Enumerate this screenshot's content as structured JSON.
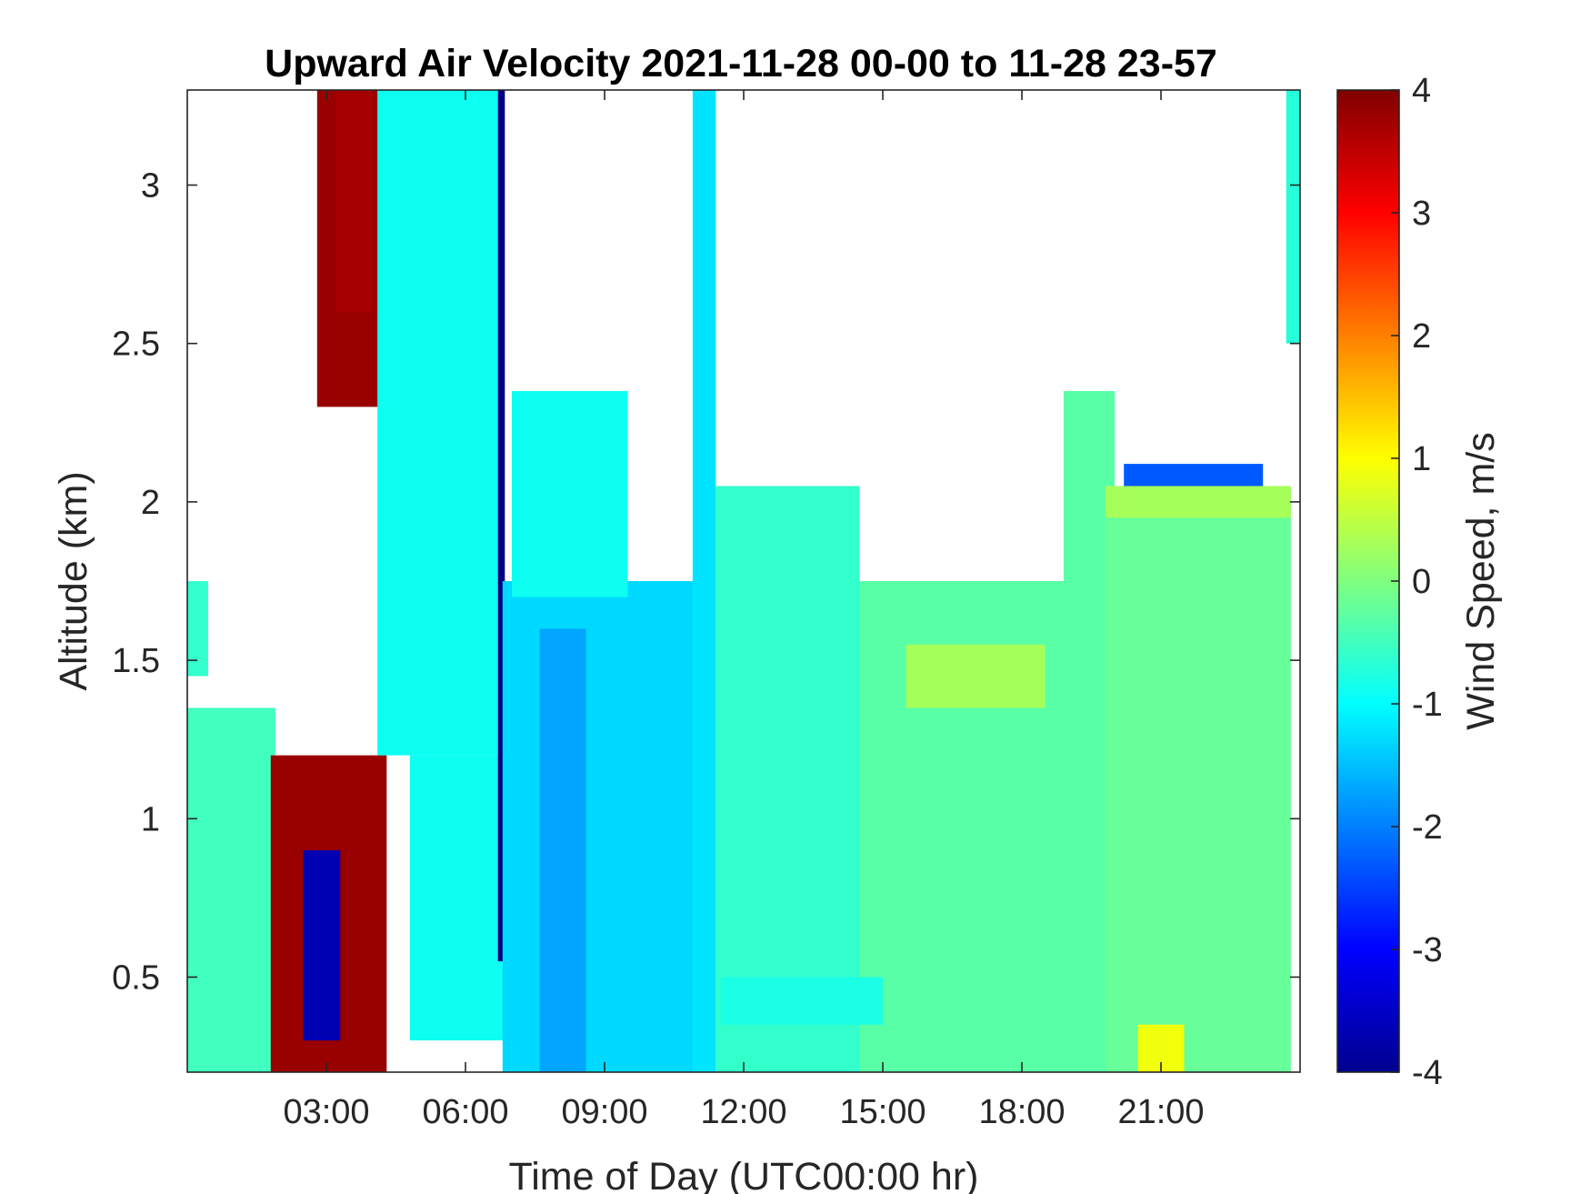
{
  "chart_data": {
    "type": "heatmap",
    "title": "Upward Air Velocity 2021-11-28 00-00 to 11-28 23-57",
    "xlabel": "Time of Day (UTC00:00 hr)",
    "ylabel": "Altitude (km)",
    "xlim": [
      0,
      24
    ],
    "ylim": [
      0.2,
      3.3
    ],
    "x_ticks": [
      {
        "value": 3,
        "label": "03:00"
      },
      {
        "value": 6,
        "label": "06:00"
      },
      {
        "value": 9,
        "label": "09:00"
      },
      {
        "value": 12,
        "label": "12:00"
      },
      {
        "value": 15,
        "label": "15:00"
      },
      {
        "value": 18,
        "label": "18:00"
      },
      {
        "value": 21,
        "label": "21:00"
      }
    ],
    "y_ticks": [
      {
        "value": 0.5,
        "label": "0.5"
      },
      {
        "value": 1,
        "label": "1"
      },
      {
        "value": 1.5,
        "label": "1.5"
      },
      {
        "value": 2,
        "label": "2"
      },
      {
        "value": 2.5,
        "label": "2.5"
      },
      {
        "value": 3,
        "label": "3"
      }
    ],
    "colorbar": {
      "label": "Wind Speed, m/s",
      "range": [
        -4,
        4
      ],
      "colormap": "jet",
      "ticks": [
        {
          "value": -4,
          "label": "-4"
        },
        {
          "value": -3,
          "label": "-3"
        },
        {
          "value": -2,
          "label": "-2"
        },
        {
          "value": -1,
          "label": "-1"
        },
        {
          "value": 0,
          "label": "0"
        },
        {
          "value": 1,
          "label": "1"
        },
        {
          "value": 2,
          "label": "2"
        },
        {
          "value": 3,
          "label": "3"
        },
        {
          "value": 4,
          "label": "4"
        }
      ]
    },
    "regions": [
      {
        "x": [
          0.0,
          0.45
        ],
        "y": [
          1.45,
          1.75
        ],
        "v": -0.6
      },
      {
        "x": [
          0.0,
          1.9
        ],
        "y": [
          0.2,
          1.35
        ],
        "v": -0.5
      },
      {
        "x": [
          1.8,
          4.3
        ],
        "y": [
          0.2,
          1.2
        ],
        "v": 3.8
      },
      {
        "x": [
          2.5,
          3.3
        ],
        "y": [
          0.3,
          0.9
        ],
        "v": -3.6
      },
      {
        "x": [
          2.8,
          4.2
        ],
        "y": [
          2.3,
          3.3
        ],
        "v": 3.8
      },
      {
        "x": [
          3.2,
          4.0
        ],
        "y": [
          2.6,
          3.3
        ],
        "v": 3.7
      },
      {
        "x": [
          4.1,
          6.7
        ],
        "y": [
          1.2,
          3.3
        ],
        "v": -0.9
      },
      {
        "x": [
          4.8,
          7.0
        ],
        "y": [
          0.3,
          1.2
        ],
        "v": -0.9
      },
      {
        "x": [
          6.7,
          6.85
        ],
        "y": [
          0.55,
          3.3
        ],
        "v": -4.0
      },
      {
        "x": [
          6.8,
          11.0
        ],
        "y": [
          0.2,
          1.75
        ],
        "v": -1.3
      },
      {
        "x": [
          7.0,
          9.5
        ],
        "y": [
          1.7,
          2.35
        ],
        "v": -0.9
      },
      {
        "x": [
          7.6,
          8.6
        ],
        "y": [
          0.2,
          1.6
        ],
        "v": -1.7
      },
      {
        "x": [
          10.9,
          11.4
        ],
        "y": [
          0.2,
          3.3
        ],
        "v": -1.2
      },
      {
        "x": [
          11.4,
          14.5
        ],
        "y": [
          0.2,
          2.05
        ],
        "v": -0.6
      },
      {
        "x": [
          14.5,
          19.0
        ],
        "y": [
          0.2,
          1.75
        ],
        "v": -0.3
      },
      {
        "x": [
          15.5,
          18.5
        ],
        "y": [
          1.35,
          1.55
        ],
        "v": 0.3
      },
      {
        "x": [
          18.9,
          20.0
        ],
        "y": [
          0.2,
          2.35
        ],
        "v": -0.3
      },
      {
        "x": [
          19.8,
          23.8
        ],
        "y": [
          0.2,
          2.05
        ],
        "v": -0.2
      },
      {
        "x": [
          19.8,
          23.8
        ],
        "y": [
          1.95,
          2.05
        ],
        "v": 0.3
      },
      {
        "x": [
          20.2,
          23.2
        ],
        "y": [
          2.05,
          2.12
        ],
        "v": -2.3
      },
      {
        "x": [
          11.5,
          15.0
        ],
        "y": [
          0.35,
          0.5
        ],
        "v": -0.8
      },
      {
        "x": [
          23.7,
          24.0
        ],
        "y": [
          2.5,
          3.3
        ],
        "v": -0.7
      },
      {
        "x": [
          20.5,
          21.5
        ],
        "y": [
          0.2,
          0.35
        ],
        "v": 0.9
      }
    ]
  }
}
